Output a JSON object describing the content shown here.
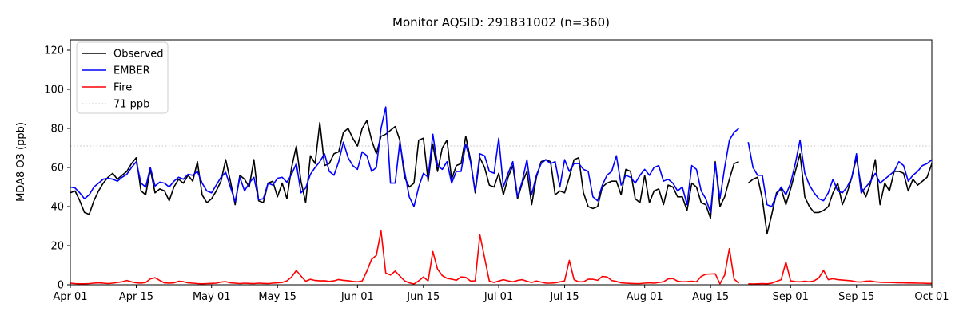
{
  "title": "Monitor AQSID: 291831002 (n=360)",
  "ylabel": "MDA8 O3 (ppb)",
  "colors": {
    "observed": "#000000",
    "ember": "#0000ff",
    "fire": "#ff0000",
    "threshold": "#d3d3d3",
    "spine": "#000000"
  },
  "chart_data": {
    "type": "line",
    "title": "Monitor AQSID: 291831002 (n=360)",
    "xlabel": "",
    "ylabel": "MDA8 O3 (ppb)",
    "grid": false,
    "legend_position": "upper left",
    "xlim_days": [
      0,
      183
    ],
    "ylim": [
      0,
      125
    ],
    "y_ticks": [
      0,
      20,
      40,
      60,
      80,
      100,
      120
    ],
    "x_ticks": [
      {
        "day": 0,
        "label": "Apr 01"
      },
      {
        "day": 14,
        "label": "Apr 15"
      },
      {
        "day": 30,
        "label": "May 01"
      },
      {
        "day": 44,
        "label": "May 15"
      },
      {
        "day": 61,
        "label": "Jun 01"
      },
      {
        "day": 75,
        "label": "Jun 15"
      },
      {
        "day": 91,
        "label": "Jul 01"
      },
      {
        "day": 105,
        "label": "Jul 15"
      },
      {
        "day": 122,
        "label": "Aug 01"
      },
      {
        "day": 136,
        "label": "Aug 15"
      },
      {
        "day": 153,
        "label": "Sep 01"
      },
      {
        "day": 167,
        "label": "Sep 15"
      },
      {
        "day": 183,
        "label": "Oct 01"
      }
    ],
    "ref_line": {
      "label": "71 ppb",
      "value": 71,
      "style": "dotted"
    },
    "series": [
      {
        "name": "Observed",
        "color_key": "observed",
        "values": [
          47,
          48,
          43,
          37,
          36,
          43,
          48,
          52,
          55,
          57,
          54,
          56,
          58,
          62,
          65,
          48,
          46,
          59,
          47,
          49,
          48,
          43,
          50,
          54,
          52,
          56,
          53,
          63,
          46,
          42,
          44,
          48,
          53,
          64,
          53,
          41,
          56,
          54,
          50,
          64,
          43,
          42,
          52,
          53,
          45,
          52,
          44,
          60,
          71,
          53,
          42,
          66,
          62,
          83,
          61,
          62,
          67,
          68,
          78,
          80,
          75,
          71,
          80,
          84,
          74,
          67,
          76,
          77,
          79,
          81,
          74,
          55,
          50,
          52,
          74,
          75,
          53,
          72,
          58,
          70,
          74,
          54,
          61,
          62,
          76,
          64,
          47,
          65,
          60,
          51,
          50,
          57,
          46,
          55,
          61,
          44,
          52,
          58,
          41,
          55,
          63,
          64,
          63,
          46,
          48,
          47,
          55,
          64,
          65,
          47,
          40,
          39,
          40,
          50,
          52,
          53,
          53,
          46,
          59,
          58,
          44,
          42,
          56,
          42,
          48,
          49,
          41,
          51,
          50,
          45,
          45,
          38,
          52,
          50,
          42,
          41,
          34,
          63,
          40,
          45,
          54,
          62,
          63,
          null,
          52,
          54,
          55,
          44,
          26,
          36,
          47,
          49,
          41,
          49,
          58,
          67,
          45,
          40,
          37,
          37,
          38,
          40,
          47,
          52,
          41,
          47,
          55,
          65,
          50,
          45,
          52,
          64,
          41,
          52,
          48,
          58,
          58,
          57,
          48,
          54,
          51,
          53,
          55,
          62
        ]
      },
      {
        "name": "EMBER",
        "color_key": "ember",
        "values": [
          50,
          49.5,
          47,
          44,
          46,
          50,
          52,
          54,
          54.5,
          54,
          53,
          55,
          56.5,
          60,
          63,
          52,
          50,
          60,
          50.5,
          52.5,
          52,
          50,
          53,
          55,
          54,
          56.5,
          56,
          58,
          52,
          48,
          47,
          51,
          55,
          57.5,
          50,
          42.5,
          55,
          48,
          52,
          55,
          43.5,
          44,
          52,
          51,
          54.5,
          55,
          52.5,
          56.5,
          62,
          47,
          49.5,
          56.5,
          60,
          63,
          67,
          58,
          56,
          63,
          73,
          65,
          61,
          59,
          68,
          66,
          58,
          60,
          80,
          91,
          52,
          52,
          73,
          58,
          45,
          40,
          50,
          57,
          55,
          77,
          61,
          59,
          63,
          52,
          58,
          58,
          72,
          63,
          48,
          67,
          66,
          58,
          57,
          75,
          50,
          57,
          63,
          45,
          53,
          64,
          46,
          56,
          62,
          64,
          62,
          63,
          50,
          64,
          58,
          62,
          62,
          59,
          58,
          45,
          43,
          51,
          56,
          58,
          66,
          51,
          56,
          55,
          52,
          56,
          59,
          56,
          60,
          61,
          53,
          54,
          52,
          48,
          50,
          41,
          61,
          59,
          48,
          44,
          37,
          62,
          44,
          60,
          74,
          78,
          80,
          null,
          73,
          60,
          56,
          56,
          41,
          40,
          46,
          50,
          46,
          52,
          62,
          74,
          57,
          51,
          47,
          44,
          43,
          47,
          54,
          48,
          47,
          50,
          55,
          67,
          47,
          50,
          53,
          57,
          52,
          54,
          56,
          58,
          63,
          61,
          53,
          56,
          58,
          61,
          62,
          64
        ]
      },
      {
        "name": "Fire",
        "color_key": "fire",
        "values": [
          0.8,
          0.6,
          0.5,
          0.5,
          0.6,
          0.8,
          1.0,
          0.8,
          0.6,
          0.8,
          1.2,
          1.5,
          2.2,
          1.5,
          1.0,
          0.8,
          1.2,
          3.0,
          3.6,
          2.2,
          1.0,
          0.8,
          1.0,
          1.8,
          1.6,
          1.0,
          0.8,
          0.6,
          0.5,
          0.6,
          0.7,
          0.8,
          1.4,
          1.6,
          1.0,
          0.8,
          0.6,
          0.8,
          0.7,
          0.6,
          0.8,
          0.7,
          0.6,
          0.8,
          1.0,
          1.2,
          2.0,
          4.0,
          7.3,
          4.5,
          1.8,
          2.8,
          2.2,
          2.0,
          2.1,
          1.7,
          2.0,
          2.7,
          2.3,
          2.1,
          1.7,
          1.5,
          1.9,
          7.0,
          13.0,
          15.0,
          27.5,
          6.0,
          5.0,
          7.0,
          4.5,
          2.0,
          1.0,
          0.4,
          2.0,
          4.0,
          2.0,
          17.0,
          8.0,
          4.7,
          3.3,
          2.9,
          2.3,
          4.0,
          3.8,
          1.9,
          2.0,
          25.5,
          13.7,
          1.9,
          1.2,
          1.9,
          2.6,
          2.0,
          1.5,
          2.2,
          2.6,
          1.8,
          1.2,
          1.9,
          1.4,
          0.8,
          0.8,
          1.0,
          1.5,
          2.0,
          12.5,
          2.6,
          1.5,
          1.5,
          2.8,
          2.8,
          2.3,
          4.3,
          4.0,
          2.2,
          1.7,
          1.0,
          0.8,
          0.7,
          0.6,
          0.6,
          0.8,
          1.0,
          0.8,
          1.2,
          1.5,
          3.0,
          3.2,
          1.8,
          1.5,
          1.6,
          1.8,
          1.5,
          4.3,
          5.4,
          5.5,
          5.6,
          0.5,
          5.0,
          18.5,
          2.9,
          0.8,
          null,
          0.5,
          0.4,
          0.5,
          0.6,
          0.5,
          0.8,
          1.7,
          2.6,
          11.6,
          2.0,
          1.6,
          1.5,
          1.8,
          1.5,
          2.0,
          3.5,
          7.4,
          2.6,
          3.1,
          2.6,
          2.4,
          2.2,
          2.0,
          1.5,
          1.4,
          1.8,
          1.9,
          1.5,
          1.3,
          1.2,
          1.2,
          1.1,
          1.0,
          1.0,
          0.9,
          0.9,
          0.8,
          0.8,
          0.7,
          0.7
        ]
      }
    ],
    "legend_entries": [
      "Observed",
      "EMBER",
      "Fire",
      "71 ppb"
    ]
  }
}
